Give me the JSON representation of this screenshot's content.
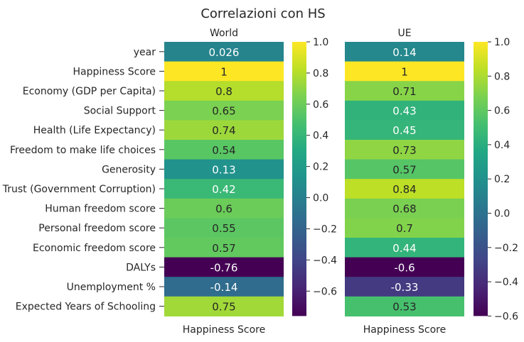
{
  "chart_data": {
    "type": "heatmap",
    "title": "Correlazioni con HS",
    "colormap": "viridis",
    "row_labels": [
      "year",
      "Happiness Score",
      "Economy (GDP per Capita)",
      "Social Support",
      "Health (Life Expectancy)",
      "Freedom to make life choices",
      "Generosity",
      "Trust (Government Corruption)",
      "Human freedom score",
      "Personal freedom score",
      "Economic freedom score",
      "DALYs",
      "Unemployment %",
      "Expected Years of Schooling"
    ],
    "panels": [
      {
        "subtitle": "World",
        "xlabel": "Happiness Score",
        "values": [
          0.026,
          1,
          0.8,
          0.65,
          0.74,
          0.54,
          0.13,
          0.42,
          0.6,
          0.55,
          0.57,
          -0.76,
          -0.14,
          0.75
        ],
        "value_labels": [
          "0.026",
          "1",
          "0.8",
          "0.65",
          "0.74",
          "0.54",
          "0.13",
          "0.42",
          "0.6",
          "0.55",
          "0.57",
          "-0.76",
          "-0.14",
          "0.75"
        ],
        "vmin": -0.76,
        "vmax": 1.0,
        "colorbar_ticks": [
          {
            "value": 1.0,
            "label": "1.0"
          },
          {
            "value": 0.8,
            "label": "0.8"
          },
          {
            "value": 0.6,
            "label": "0.6"
          },
          {
            "value": 0.4,
            "label": "0.4"
          },
          {
            "value": 0.2,
            "label": "0.2"
          },
          {
            "value": 0.0,
            "label": "0.0"
          },
          {
            "value": -0.2,
            "label": "−0.2"
          },
          {
            "value": -0.4,
            "label": "−0.4"
          },
          {
            "value": -0.6,
            "label": "−0.6"
          }
        ]
      },
      {
        "subtitle": "UE",
        "xlabel": "Happiness Score",
        "values": [
          0.14,
          1,
          0.71,
          0.43,
          0.45,
          0.73,
          0.57,
          0.84,
          0.68,
          0.7,
          0.44,
          -0.6,
          -0.33,
          0.53
        ],
        "value_labels": [
          "0.14",
          "1",
          "0.71",
          "0.43",
          "0.45",
          "0.73",
          "0.57",
          "0.84",
          "0.68",
          "0.7",
          "0.44",
          "-0.6",
          "-0.33",
          "0.53"
        ],
        "vmin": -0.6,
        "vmax": 1.0,
        "colorbar_ticks": [
          {
            "value": 1.0,
            "label": "1.0"
          },
          {
            "value": 0.8,
            "label": "0.8"
          },
          {
            "value": 0.6,
            "label": "0.6"
          },
          {
            "value": 0.4,
            "label": "0.4"
          },
          {
            "value": 0.2,
            "label": "0.2"
          },
          {
            "value": 0.0,
            "label": "0.0"
          },
          {
            "value": -0.2,
            "label": "−0.2"
          },
          {
            "value": -0.4,
            "label": "−0.4"
          },
          {
            "value": -0.6,
            "label": "−0.6"
          }
        ]
      }
    ]
  }
}
